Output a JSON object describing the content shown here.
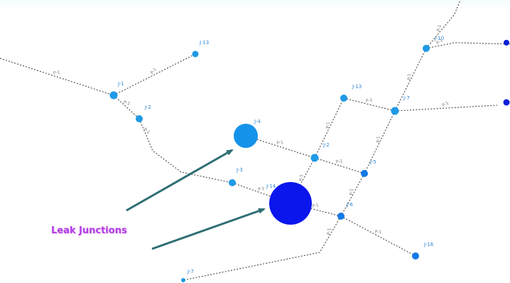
{
  "annotation": {
    "text": "Leak Junctions"
  },
  "colors": {
    "light_node": "#1f9ae6",
    "mid_node": "#1479e6",
    "dark_node": "#0a1fd6",
    "leak_small": "#1593ea",
    "leak_large": "#0a16ec",
    "arrow": "#2e6e74",
    "pipe": "#555555",
    "label": "#2e86d6"
  },
  "junctions": [
    {
      "id": "n1",
      "label": "J-13",
      "kind": "light"
    },
    {
      "id": "n2",
      "label": "J-1",
      "kind": "light"
    },
    {
      "id": "n3",
      "label": "J-2",
      "kind": "light"
    },
    {
      "id": "n4",
      "label": "J-4",
      "kind": "leak_small"
    },
    {
      "id": "n5",
      "label": "J-3",
      "kind": "light"
    },
    {
      "id": "n6",
      "label": "J-14",
      "kind": "leak_large"
    },
    {
      "id": "n7",
      "label": "J-2",
      "kind": "light"
    },
    {
      "id": "n8",
      "label": "J-13",
      "kind": "light"
    },
    {
      "id": "n9",
      "label": "J-7",
      "kind": "light"
    },
    {
      "id": "n10",
      "label": "J-5",
      "kind": "mid"
    },
    {
      "id": "n11",
      "label": "J-6",
      "kind": "mid"
    },
    {
      "id": "n12",
      "label": "J-16",
      "kind": "mid"
    },
    {
      "id": "n13",
      "label": "J-10",
      "kind": "light"
    },
    {
      "id": "n14",
      "label": "J-9",
      "kind": "dark"
    },
    {
      "id": "n15",
      "label": "J-8",
      "kind": "dark"
    },
    {
      "id": "n16",
      "label": "J-7",
      "kind": "light"
    }
  ],
  "pipe_label": "P-1"
}
